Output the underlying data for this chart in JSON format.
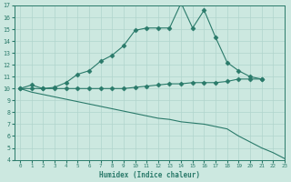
{
  "bg_color": "#cce8e0",
  "line_color": "#2a7a6a",
  "grid_color": "#b0d4cc",
  "xlabel": "Humidex (Indice chaleur)",
  "xlim": [
    -0.5,
    23
  ],
  "ylim": [
    4,
    17
  ],
  "yticks": [
    4,
    5,
    6,
    7,
    8,
    9,
    10,
    11,
    12,
    13,
    14,
    15,
    16,
    17
  ],
  "xticks": [
    0,
    1,
    2,
    3,
    4,
    5,
    6,
    7,
    8,
    9,
    10,
    11,
    12,
    13,
    14,
    15,
    16,
    17,
    18,
    19,
    20,
    21,
    22,
    23
  ],
  "series1_x": [
    0,
    1,
    2,
    3,
    4,
    5,
    6,
    7,
    8,
    9,
    10,
    11,
    12,
    13,
    14,
    15,
    16,
    17,
    18,
    19,
    20,
    21
  ],
  "series1_y": [
    10.0,
    10.3,
    10.0,
    10.1,
    10.5,
    11.2,
    11.5,
    12.3,
    12.8,
    13.6,
    14.9,
    15.1,
    15.1,
    15.1,
    17.2,
    15.1,
    16.6,
    14.3,
    12.2,
    11.5,
    11.0,
    10.8
  ],
  "series2_x": [
    0,
    1,
    2,
    3,
    4,
    5,
    6,
    7,
    8,
    9,
    10,
    11,
    12,
    13,
    14,
    15,
    16,
    17,
    18,
    19,
    20,
    21
  ],
  "series2_y": [
    10.0,
    10.0,
    10.0,
    10.0,
    10.0,
    10.0,
    10.0,
    10.0,
    10.0,
    10.0,
    10.1,
    10.2,
    10.3,
    10.4,
    10.4,
    10.5,
    10.5,
    10.5,
    10.6,
    10.8,
    10.8,
    10.8
  ],
  "series3_x": [
    0,
    1,
    2,
    3,
    4,
    5,
    6,
    7,
    8,
    9,
    10,
    11,
    12,
    13,
    14,
    15,
    16,
    17,
    18,
    19,
    20,
    21,
    22,
    23
  ],
  "series3_y": [
    10.0,
    9.7,
    9.5,
    9.3,
    9.1,
    8.9,
    8.7,
    8.5,
    8.3,
    8.1,
    7.9,
    7.7,
    7.5,
    7.4,
    7.2,
    7.1,
    7.0,
    6.8,
    6.6,
    6.0,
    5.5,
    5.0,
    4.6,
    4.1
  ]
}
